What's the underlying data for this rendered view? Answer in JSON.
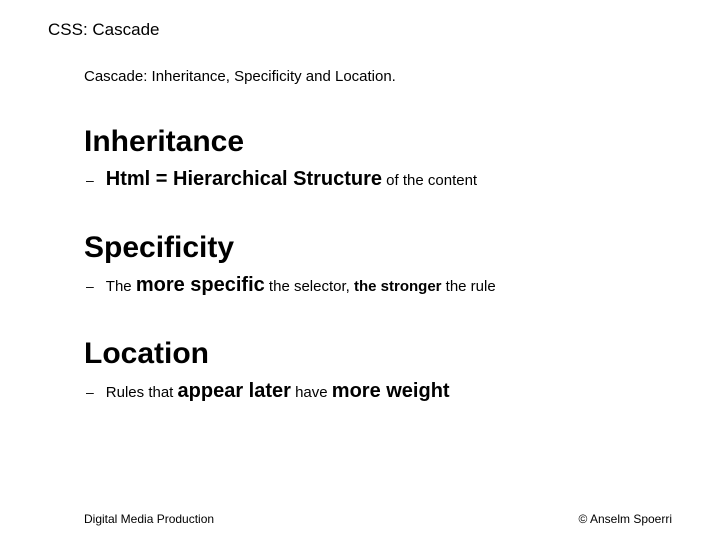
{
  "slide": {
    "title": "CSS: Cascade",
    "subtitle": "Cascade: Inheritance, Specificity and Location.",
    "sections": [
      {
        "heading": "Inheritance",
        "bullet": {
          "lead_bold": "Html = Hierarchical Structure",
          "tail_plain": " of the content"
        }
      },
      {
        "heading": "Specificity",
        "bullet": {
          "pre_plain": "The ",
          "mid_bold": "more specific",
          "mid_plain": " the selector, ",
          "end_bold_sm": "the stronger",
          "end_plain": " the rule"
        }
      },
      {
        "heading": "Location",
        "bullet": {
          "pre_plain": "Rules that ",
          "mid_bold": "appear later",
          "mid_plain": " have ",
          "end_bold": "more weight"
        }
      }
    ],
    "footer": {
      "left": "Digital Media Production",
      "right": "© Anselm Spoerri"
    },
    "colors": {
      "background": "#ffffff",
      "text": "#000000"
    },
    "fonts": {
      "body": "Verdana",
      "footer": "Arial",
      "title_size_pt": 17,
      "subtitle_size_pt": 15,
      "heading_size_pt": 30,
      "bullet_size_pt": 15,
      "bold_lg_size_pt": 20,
      "footer_size_pt": 12
    }
  }
}
